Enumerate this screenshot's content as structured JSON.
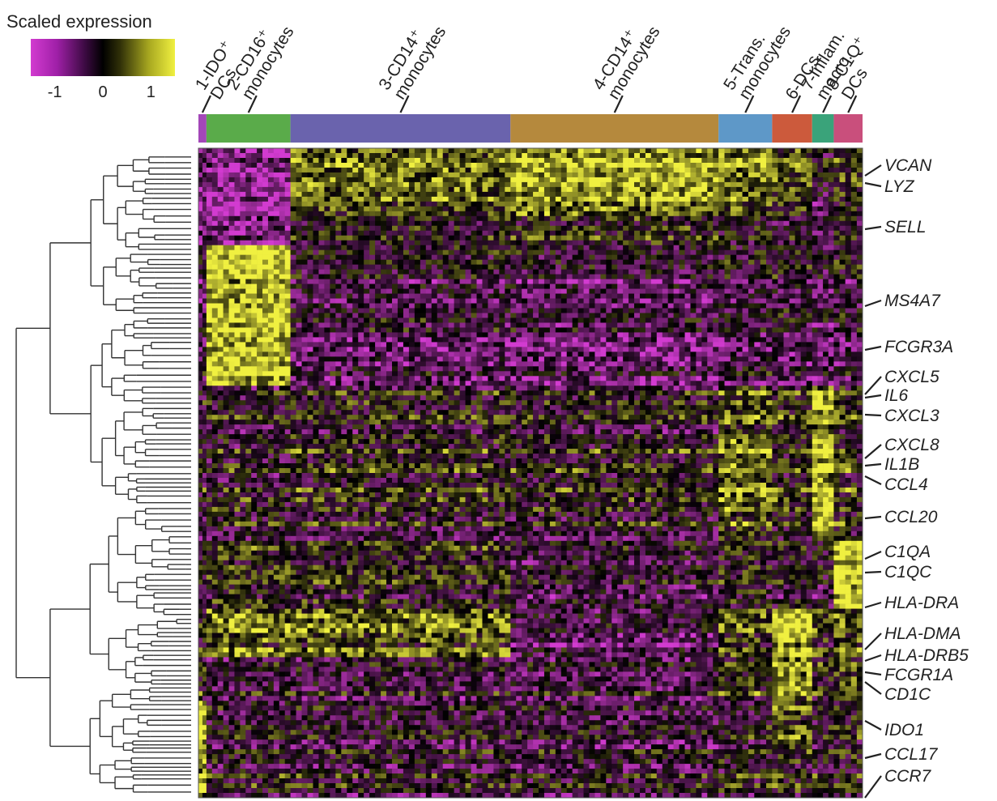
{
  "chart_data": {
    "type": "heatmap",
    "title": "",
    "legend": {
      "title": "Scaled expression",
      "ticks": [
        "-1",
        "0",
        "1"
      ],
      "range": [
        -1.5,
        1.5
      ],
      "colors": {
        "low": "#d23bd0",
        "mid": "#000000",
        "high": "#f0f040"
      }
    },
    "clusters": [
      {
        "id": 1,
        "label_lines": [
          "1-IDO⁺",
          "DCs"
        ],
        "color": "#a347b8",
        "cells": 10
      },
      {
        "id": 2,
        "label_lines": [
          "2-CD16⁺",
          "monocytes"
        ],
        "color": "#5aab4a",
        "cells": 105
      },
      {
        "id": 3,
        "label_lines": [
          "3-CD14⁺",
          "monocytes"
        ],
        "color": "#6a63ad",
        "cells": 275
      },
      {
        "id": 4,
        "label_lines": [
          "4-CD14⁺",
          "monocytes"
        ],
        "color": "#b5893d",
        "cells": 260
      },
      {
        "id": 5,
        "label_lines": [
          "5-Trans.",
          "monocytes"
        ],
        "color": "#5e98c8",
        "cells": 67
      },
      {
        "id": 6,
        "label_lines": [
          "6-DCs"
        ],
        "color": "#cc5a3c",
        "cells": 50
      },
      {
        "id": 7,
        "label_lines": [
          "7-Inflam.",
          "macro."
        ],
        "color": "#3aa37a",
        "cells": 27
      },
      {
        "id": 8,
        "label_lines": [
          "8-C1Q⁺",
          "DCs"
        ],
        "color": "#c94f7c",
        "cells": 36
      }
    ],
    "gene_labels": [
      "VCAN",
      "LYZ",
      "SELL",
      "MS4A7",
      "FCGR3A",
      "CXCL5",
      "IL6",
      "CXCL3",
      "CXCL8",
      "IL1B",
      "CCL4",
      "CCL20",
      "C1QA",
      "C1QC",
      "HLA-DRA",
      "HLA-DMA",
      "HLA-DRB5",
      "FCGR1A",
      "CD1C",
      "IDO1",
      "CCL17",
      "CCR7"
    ],
    "gene_modules": [
      {
        "genes": 14,
        "levels": [
          -1.0,
          -1.2,
          0.5,
          0.9,
          0.6,
          0.3,
          -0.4,
          0.1
        ]
      },
      {
        "genes": 6,
        "levels": [
          -0.6,
          -0.7,
          0.1,
          0.3,
          0.1,
          0.0,
          -0.3,
          0.0
        ]
      },
      {
        "genes": 18,
        "levels": [
          -0.5,
          1.2,
          -0.4,
          -0.5,
          -0.4,
          -0.3,
          -0.6,
          -0.3
        ]
      },
      {
        "genes": 11,
        "levels": [
          -0.3,
          1.4,
          -0.5,
          -0.6,
          -0.4,
          -0.5,
          -0.5,
          -0.4
        ]
      },
      {
        "genes": 10,
        "levels": [
          -0.2,
          -0.2,
          -0.1,
          -0.2,
          0.4,
          0.1,
          1.0,
          0.2
        ]
      },
      {
        "genes": 13,
        "levels": [
          -0.1,
          -0.1,
          0.1,
          0.1,
          0.8,
          0.2,
          1.3,
          0.2
        ]
      },
      {
        "genes": 9,
        "levels": [
          -0.3,
          -0.1,
          -0.1,
          -0.1,
          0.5,
          0.1,
          1.2,
          0.1
        ]
      },
      {
        "genes": 14,
        "levels": [
          -0.2,
          0.1,
          0.0,
          -0.4,
          -0.1,
          -0.2,
          -0.3,
          1.4
        ]
      },
      {
        "genes": 10,
        "levels": [
          -0.1,
          0.6,
          0.5,
          -0.6,
          0.3,
          1.2,
          0.2,
          0.5
        ]
      },
      {
        "genes": 9,
        "levels": [
          0.1,
          -0.3,
          -0.3,
          -0.4,
          0.2,
          0.9,
          0.1,
          0.4
        ]
      },
      {
        "genes": 10,
        "levels": [
          1.3,
          -0.3,
          -0.3,
          -0.4,
          -0.2,
          0.3,
          -0.2,
          0.0
        ]
      },
      {
        "genes": 10,
        "levels": [
          1.1,
          -0.1,
          -0.2,
          -0.2,
          -0.1,
          0.1,
          -0.1,
          0.0
        ]
      }
    ]
  }
}
